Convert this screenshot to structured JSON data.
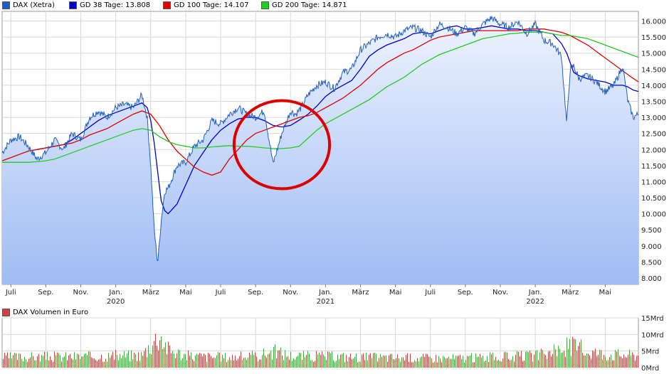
{
  "legend": [
    {
      "label": "DAX (Xetra)",
      "color": "#2060c0"
    },
    {
      "label": "GD 38 Tage: 13.808",
      "color": "#0000cc"
    },
    {
      "label": "GD 100 Tage: 14.107",
      "color": "#e00000"
    },
    {
      "label": "GD 200 Tage: 14.871",
      "color": "#22cc22"
    }
  ],
  "volume_legend": {
    "label": "DAX Volumen in Euro",
    "color": "#cc4444"
  },
  "colors": {
    "price": "#2060c0",
    "gd38": "#0000cc",
    "gd100": "#e00000",
    "gd200": "#22cc22",
    "circle": "#dd0000",
    "area_top": "#eef3ff",
    "area_bottom": "#9fbcf3",
    "grid": "#d8d8d8",
    "vol_up": "#44aa44",
    "vol_down": "#cc4444"
  },
  "chart_data": [
    {
      "type": "line",
      "title": "",
      "y_ticks": [
        "16.000",
        "15.500",
        "15.000",
        "14.500",
        "14.000",
        "13.500",
        "13.000",
        "12.500",
        "12.000",
        "11.500",
        "11.000",
        "10.500",
        "10.000",
        "9.500",
        "9.000",
        "8.500",
        "8.000"
      ],
      "y_tick_values": [
        16000,
        15500,
        15000,
        14500,
        14000,
        13500,
        13000,
        12500,
        12000,
        11500,
        11000,
        10500,
        10000,
        9500,
        9000,
        8500,
        8000
      ],
      "ylim": [
        7800,
        16300
      ],
      "x_ticks": [
        {
          "label": "Juli",
          "year": ""
        },
        {
          "label": "Sep.",
          "year": ""
        },
        {
          "label": "Nov.",
          "year": ""
        },
        {
          "label": "Jan.",
          "year": "2020"
        },
        {
          "label": "März",
          "year": ""
        },
        {
          "label": "Mai",
          "year": ""
        },
        {
          "label": "Juli",
          "year": ""
        },
        {
          "label": "Sep.",
          "year": ""
        },
        {
          "label": "Nov.",
          "year": ""
        },
        {
          "label": "Jan.",
          "year": "2021"
        },
        {
          "label": "März",
          "year": ""
        },
        {
          "label": "Mai",
          "year": ""
        },
        {
          "label": "Juli",
          "year": ""
        },
        {
          "label": "Sep.",
          "year": ""
        },
        {
          "label": "Nov.",
          "year": ""
        },
        {
          "label": "Jan.",
          "year": "2022"
        },
        {
          "label": "März",
          "year": ""
        },
        {
          "label": "Mai",
          "year": ""
        }
      ],
      "x_tick_months": [
        0,
        2,
        4,
        6,
        8,
        10,
        12,
        14,
        16,
        18,
        20,
        22,
        24,
        26,
        28,
        30,
        32,
        34
      ],
      "x_range_months": [
        -0.5,
        35.9
      ],
      "series": [
        {
          "name": "DAX (Xetra)",
          "key": "price",
          "x": [
            -0.5,
            0,
            0.5,
            1,
            1.5,
            2,
            2.5,
            3,
            3.5,
            4,
            4.5,
            5,
            5.5,
            6,
            6.5,
            7,
            7.5,
            7.8,
            8,
            8.2,
            8.4,
            8.6,
            8.8,
            9,
            9.5,
            10,
            10.5,
            11,
            11.5,
            12,
            12.5,
            13,
            13.5,
            14,
            14.5,
            15,
            15.5,
            16,
            16.3,
            16.6,
            17,
            17.5,
            18,
            18.5,
            19,
            19.5,
            20,
            20.5,
            21,
            21.5,
            22,
            22.5,
            23,
            23.5,
            24,
            24.5,
            25,
            25.5,
            26,
            26.5,
            27,
            27.5,
            28,
            28.5,
            29,
            29.5,
            30,
            30.5,
            31,
            31.5,
            31.8,
            32,
            32.2,
            32.5,
            33,
            33.5,
            34,
            34.5,
            35,
            35.3,
            35.6,
            35.9
          ],
          "y": [
            11900,
            12300,
            12400,
            12100,
            11700,
            11900,
            12300,
            12000,
            12500,
            12300,
            13000,
            13200,
            13000,
            13300,
            13400,
            13300,
            13700,
            13000,
            11500,
            9500,
            8450,
            9800,
            10700,
            10800,
            11500,
            11600,
            12100,
            12300,
            12900,
            12800,
            13100,
            13300,
            13100,
            13000,
            13200,
            11550,
            12500,
            13200,
            13100,
            13300,
            13700,
            14000,
            14100,
            13900,
            14400,
            14500,
            15100,
            15300,
            15500,
            15600,
            15500,
            15700,
            15800,
            15700,
            15500,
            15900,
            15800,
            15600,
            15800,
            15600,
            15900,
            16100,
            15900,
            15800,
            16000,
            15600,
            15900,
            15400,
            15300,
            14900,
            12800,
            14500,
            14600,
            14200,
            14300,
            14100,
            13800,
            14000,
            14600,
            13500,
            13000,
            13100
          ]
        },
        {
          "name": "GD 38 Tage: 13.808",
          "key": "gd38",
          "x": [
            1.5,
            2,
            2.5,
            3,
            3.5,
            4,
            4.5,
            5,
            5.5,
            6,
            6.5,
            7,
            7.5,
            7.8,
            8,
            8.2,
            8.4,
            8.6,
            8.8,
            9,
            9.5,
            10,
            10.5,
            11,
            11.5,
            12,
            12.5,
            13,
            13.5,
            14,
            14.5,
            15,
            15.5,
            16,
            16.3,
            16.6,
            17,
            17.5,
            18,
            18.5,
            19,
            19.5,
            20,
            20.5,
            21,
            21.5,
            22,
            22.5,
            23,
            23.5,
            24,
            24.5,
            25,
            25.5,
            26,
            26.5,
            27,
            27.5,
            28,
            28.5,
            29,
            29.5,
            30,
            30.5,
            31,
            31.5,
            31.8,
            32,
            32.2,
            32.5,
            33,
            33.5,
            34,
            34.5,
            35,
            35.3,
            35.6,
            35.9
          ],
          "y": [
            12000,
            12050,
            12100,
            12150,
            12300,
            12500,
            12700,
            12900,
            13050,
            13150,
            13250,
            13350,
            13450,
            13300,
            12900,
            12200,
            11300,
            10400,
            10100,
            10000,
            10300,
            10900,
            11500,
            11900,
            12300,
            12600,
            12800,
            12950,
            13000,
            13000,
            12900,
            12750,
            12700,
            12750,
            12850,
            12950,
            13100,
            13350,
            13650,
            13850,
            14000,
            14150,
            14500,
            14900,
            15100,
            15250,
            15350,
            15450,
            15600,
            15650,
            15600,
            15700,
            15800,
            15850,
            15750,
            15750,
            15800,
            15850,
            15800,
            15750,
            15750,
            15700,
            15700,
            15650,
            15600,
            15300,
            15000,
            14700,
            14400,
            14300,
            14200,
            14150,
            14100,
            14000,
            14000,
            13950,
            13850,
            13808
          ]
        },
        {
          "name": "GD 100 Tage: 14.107",
          "key": "gd100",
          "x": [
            -0.5,
            0,
            0.5,
            1,
            1.5,
            2,
            2.5,
            3,
            3.5,
            4,
            4.5,
            5,
            5.5,
            6,
            6.5,
            7,
            7.5,
            8,
            8.5,
            9,
            9.5,
            10,
            10.5,
            11,
            11.5,
            12,
            12.5,
            13,
            13.5,
            14,
            14.5,
            15,
            15.5,
            16,
            16.5,
            17,
            17.5,
            18,
            18.5,
            19,
            19.5,
            20,
            20.5,
            21,
            21.5,
            22,
            22.5,
            23,
            23.5,
            24,
            24.5,
            25,
            25.5,
            26,
            26.5,
            27,
            27.5,
            28,
            28.5,
            29,
            29.5,
            30,
            30.5,
            31,
            31.5,
            32,
            32.5,
            33,
            33.5,
            34,
            34.5,
            35,
            35.5,
            35.9
          ],
          "y": [
            11650,
            11750,
            11850,
            11950,
            12000,
            12050,
            12100,
            12150,
            12200,
            12300,
            12450,
            12550,
            12650,
            12800,
            12950,
            13100,
            13200,
            13100,
            12750,
            12300,
            11950,
            11700,
            11450,
            11300,
            11200,
            11300,
            11700,
            12000,
            12300,
            12500,
            12600,
            12700,
            12800,
            12900,
            13000,
            13050,
            13150,
            13300,
            13450,
            13600,
            13800,
            14000,
            14250,
            14500,
            14700,
            14850,
            15000,
            15100,
            15250,
            15400,
            15500,
            15550,
            15600,
            15650,
            15700,
            15700,
            15700,
            15700,
            15700,
            15700,
            15750,
            15750,
            15750,
            15700,
            15650,
            15550,
            15400,
            15250,
            15050,
            14850,
            14650,
            14450,
            14250,
            14107
          ]
        },
        {
          "name": "GD 200 Tage: 14.871",
          "key": "gd200",
          "x": [
            -0.5,
            0,
            0.5,
            1,
            1.5,
            2,
            2.5,
            3,
            3.5,
            4,
            4.5,
            5,
            5.5,
            6,
            6.5,
            7,
            7.5,
            8,
            8.5,
            9,
            9.5,
            10,
            10.5,
            11,
            11.5,
            12,
            12.5,
            13,
            13.5,
            14,
            14.5,
            15,
            15.5,
            16,
            16.5,
            17,
            17.5,
            18,
            18.5,
            19,
            19.5,
            20,
            20.5,
            21,
            21.5,
            22,
            22.5,
            23,
            23.5,
            24,
            24.5,
            25,
            25.5,
            26,
            26.5,
            27,
            27.5,
            28,
            28.5,
            29,
            29.5,
            30,
            30.5,
            31,
            31.5,
            32,
            32.5,
            33,
            33.5,
            34,
            34.5,
            35,
            35.5,
            35.9
          ],
          "y": [
            11600,
            11600,
            11600,
            11600,
            11620,
            11650,
            11700,
            11800,
            11900,
            12000,
            12100,
            12200,
            12300,
            12400,
            12500,
            12600,
            12650,
            12600,
            12400,
            12250,
            12150,
            12100,
            12050,
            12050,
            12080,
            12100,
            12120,
            12100,
            12100,
            12080,
            12050,
            12030,
            12030,
            12050,
            12100,
            12350,
            12600,
            12800,
            12950,
            13100,
            13250,
            13400,
            13550,
            13750,
            13950,
            14100,
            14250,
            14450,
            14650,
            14800,
            14950,
            15050,
            15150,
            15250,
            15350,
            15450,
            15500,
            15550,
            15600,
            15620,
            15650,
            15650,
            15650,
            15600,
            15550,
            15550,
            15500,
            15450,
            15350,
            15250,
            15150,
            15050,
            14950,
            14871
          ]
        }
      ]
    },
    {
      "type": "bar",
      "title": "DAX Volumen in Euro",
      "y_ticks": [
        "15Mrd",
        "10Mrd",
        "5Mrd",
        "0Mrd"
      ],
      "y_tick_values": [
        15,
        10,
        5,
        0
      ],
      "ylim": [
        0,
        15
      ],
      "volume_profile_x": [
        -0.5,
        5,
        7.5,
        8,
        8.5,
        9,
        10,
        12,
        14,
        15,
        16,
        18,
        20,
        25,
        28,
        30,
        31,
        32,
        33,
        34,
        35.9
      ],
      "volume_profile_y": [
        3.5,
        3.8,
        4.2,
        8.0,
        11.0,
        6.0,
        4.0,
        3.5,
        3.8,
        5.5,
        4.0,
        3.8,
        3.5,
        3.2,
        3.5,
        4.0,
        5.0,
        7.5,
        5.5,
        4.5,
        4.2
      ]
    }
  ]
}
